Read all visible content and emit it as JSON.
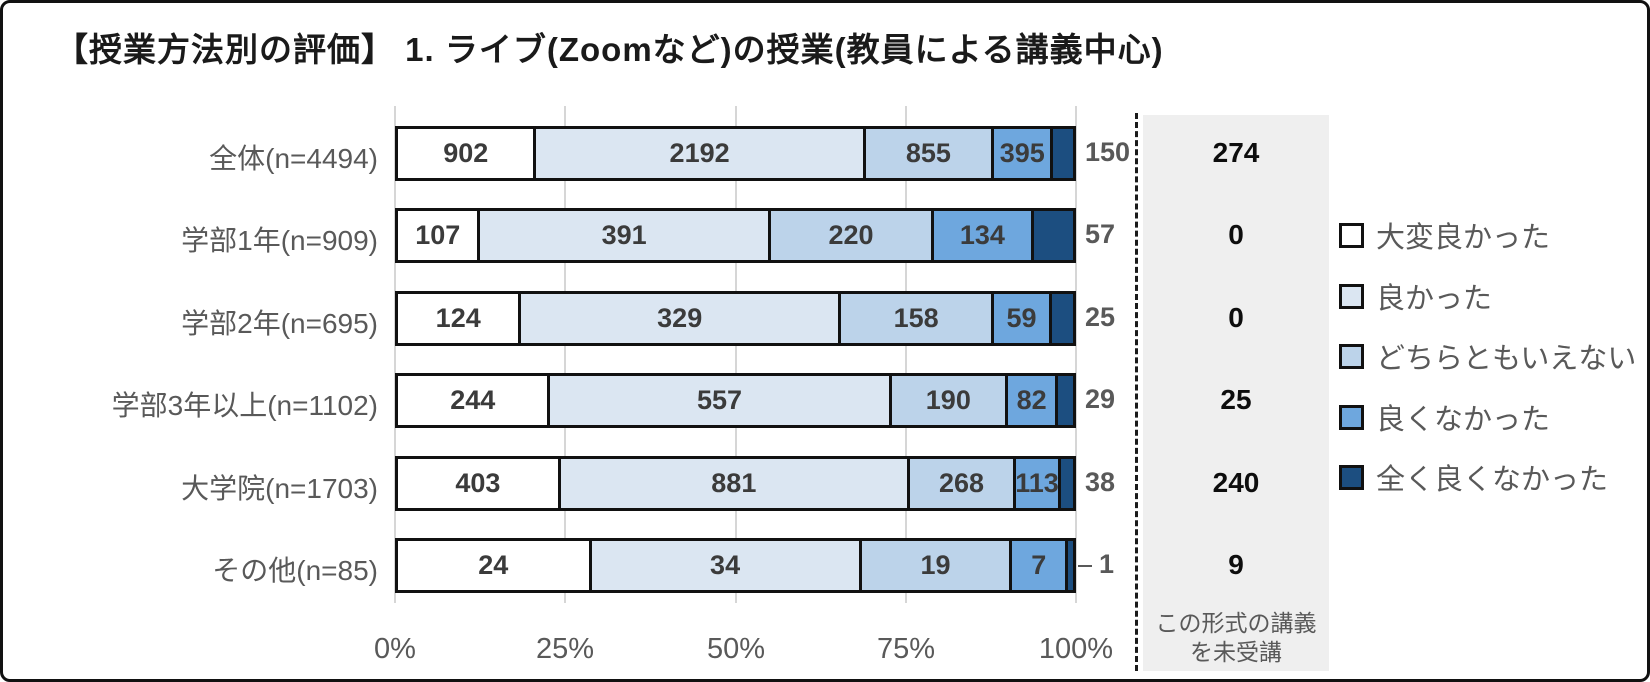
{
  "title": "【授業方法別の評価】 1. ライブ(Zoomなど)の授業(教員による講義中心)",
  "chart_data": {
    "type": "bar",
    "subtype": "horizontal-100pct-stacked",
    "categories": [
      "全体(n=4494)",
      "学部1年(n=909)",
      "学部2年(n=695)",
      "学部3年以上(n=1102)",
      "大学院(n=1703)",
      "その他(n=85)"
    ],
    "series": [
      {
        "name": "大変良かった",
        "color": "#ffffff",
        "values": [
          902,
          107,
          124,
          244,
          403,
          24
        ]
      },
      {
        "name": "良かった",
        "color": "#dbe6f2",
        "values": [
          2192,
          391,
          329,
          557,
          881,
          34
        ]
      },
      {
        "name": "どちらともいえない",
        "color": "#bcd3ea",
        "values": [
          855,
          220,
          158,
          190,
          268,
          19
        ]
      },
      {
        "name": "良くなかった",
        "color": "#6ea7de",
        "values": [
          395,
          134,
          59,
          82,
          113,
          7
        ]
      },
      {
        "name": "全く良くなかった",
        "color": "#1c4e80",
        "values": [
          150,
          57,
          25,
          29,
          38,
          1
        ]
      }
    ],
    "last_segment_labels_outside": true,
    "not_attended": {
      "label_lines": [
        "この形式の講義",
        "を未受講"
      ],
      "values": [
        274,
        0,
        0,
        25,
        240,
        9
      ]
    },
    "x_ticks": [
      "0%",
      "25%",
      "50%",
      "75%",
      "100%"
    ],
    "axis_range_percent": [
      0,
      100
    ],
    "grid": true,
    "legend_position": "right"
  },
  "colors": {
    "bar_border": "#111111",
    "gridline": "#d6d6d6",
    "panel_background": "#efefef",
    "label_gray": "#595959",
    "value_dark": "#3b3b3b",
    "panel_value_black": "#0d0d0d"
  }
}
